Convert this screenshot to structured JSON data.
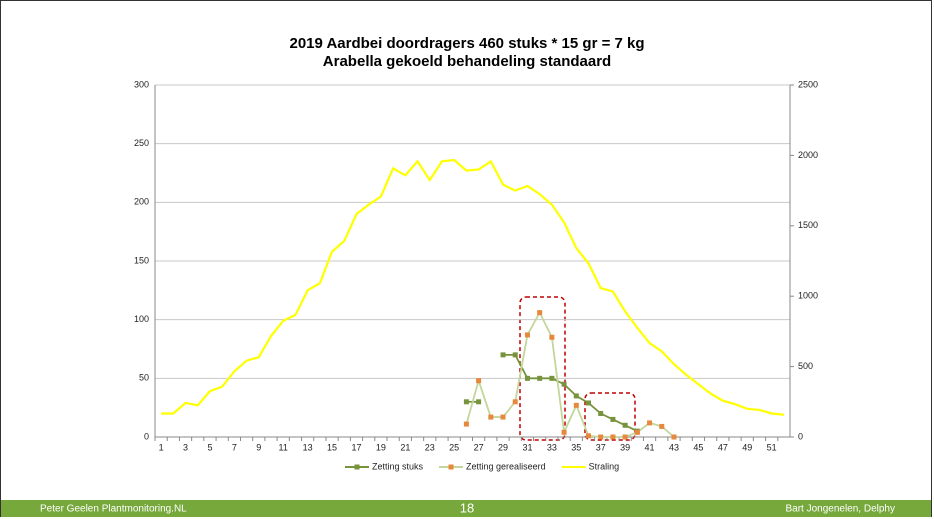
{
  "chart_data": {
    "type": "line",
    "title": "2019 Aardbei doordragers  460 stuks * 15 gr = 7 kg",
    "subtitle": "Arabella gekoeld behandeling standaard",
    "categories": [
      "1",
      null,
      "3",
      null,
      "5",
      null,
      "7",
      null,
      "9",
      null,
      "11",
      null,
      "13",
      null,
      "15",
      null,
      "17",
      null,
      "19",
      null,
      "21",
      null,
      "23",
      null,
      "25",
      null,
      "27",
      null,
      "29",
      null,
      "31",
      null,
      "33",
      null,
      "35",
      null,
      "37",
      null,
      "39",
      null,
      "41",
      null,
      "43",
      null,
      "45",
      null,
      "47",
      null,
      "49",
      null,
      "51",
      null
    ],
    "ylim": [
      0,
      300
    ],
    "yticks": [
      0,
      50,
      100,
      150,
      200,
      250,
      300
    ],
    "y2lim": [
      0,
      2500
    ],
    "y2ticks": [
      0,
      500,
      1000,
      1500,
      2000,
      2500
    ],
    "grid": true,
    "legend": "bottom",
    "series": [
      {
        "name": "Zetting stuks",
        "color": "#77933c",
        "marker_color": "#77933c",
        "values": [
          null,
          null,
          null,
          null,
          null,
          null,
          null,
          null,
          null,
          null,
          null,
          null,
          null,
          null,
          null,
          null,
          null,
          null,
          null,
          null,
          null,
          null,
          null,
          null,
          null,
          30,
          30,
          null,
          70,
          70,
          50,
          50,
          50,
          45,
          35,
          29,
          20,
          15,
          10,
          5,
          null,
          null,
          null,
          null,
          null,
          null,
          null,
          null,
          null,
          null,
          null,
          null
        ]
      },
      {
        "name": "Zetting gerealiseerd",
        "color": "#c3d69b",
        "marker_color": "#e6893c",
        "values": [
          null,
          null,
          null,
          null,
          null,
          null,
          null,
          null,
          null,
          null,
          null,
          null,
          null,
          null,
          null,
          null,
          null,
          null,
          null,
          null,
          null,
          null,
          null,
          null,
          null,
          11,
          48,
          17,
          17,
          30,
          87,
          106,
          85,
          4,
          27,
          1,
          0,
          0,
          0,
          4,
          12,
          9,
          0,
          null,
          null,
          null,
          null,
          null,
          null,
          null,
          null,
          null
        ]
      },
      {
        "name": "Straling",
        "color": "#ffff00",
        "axis": "y2",
        "values": [
          167,
          167,
          242,
          225,
          325,
          358,
          467,
          542,
          567,
          717,
          825,
          867,
          1042,
          1092,
          1317,
          1392,
          1583,
          1650,
          1708,
          1908,
          1858,
          1958,
          1825,
          1958,
          1967,
          1892,
          1900,
          1958,
          1792,
          1750,
          1783,
          1725,
          1650,
          1525,
          1342,
          1233,
          1058,
          1033,
          892,
          775,
          667,
          608,
          517,
          442,
          375,
          308,
          258,
          233,
          200,
          192,
          167,
          158
        ]
      }
    ]
  },
  "footer": {
    "left": "Peter Geelen  Plantmonitoring.NL",
    "center": "18",
    "right": "Bart Jongenelen, Delphy"
  }
}
